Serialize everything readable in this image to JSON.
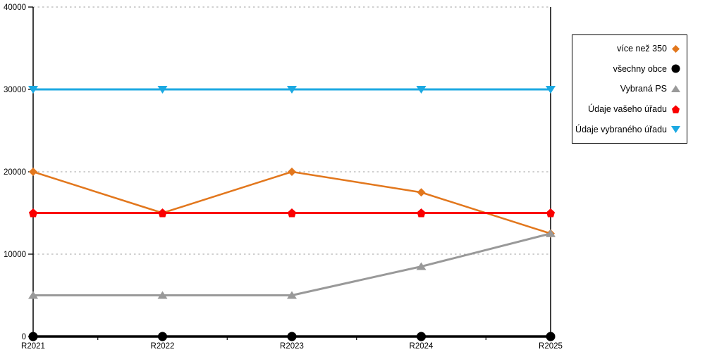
{
  "chart_data": {
    "type": "line",
    "title": "",
    "xlabel": "",
    "ylabel": "",
    "categories": [
      "R2021",
      "R2022",
      "R2023",
      "R2024",
      "R2025"
    ],
    "series": [
      {
        "name": "více než 350",
        "color": "#E2771D",
        "marker": "diamond",
        "line_width": 2.5,
        "values": [
          20000,
          15000,
          20000,
          17500,
          12500
        ]
      },
      {
        "name": "všechny obce",
        "color": "#000000",
        "marker": "circle",
        "line_width": 3.5,
        "values": [
          0,
          0,
          0,
          0,
          0
        ]
      },
      {
        "name": "Vybraná PS",
        "color": "#999999",
        "marker": "triangle-up",
        "line_width": 3,
        "values": [
          5000,
          5000,
          5000,
          8500,
          12500
        ]
      },
      {
        "name": "Údaje vašeho úřadu",
        "color": "#FA0000",
        "marker": "pentagon",
        "line_width": 3,
        "values": [
          15000,
          15000,
          15000,
          15000,
          15000
        ]
      },
      {
        "name": "Údaje vybraného úřadu",
        "color": "#1CA9E2",
        "marker": "triangle-down",
        "line_width": 3,
        "values": [
          30000,
          30000,
          30000,
          30000,
          30000
        ]
      }
    ],
    "ylim": [
      0,
      40000
    ],
    "yticks": [
      0,
      10000,
      20000,
      30000,
      40000
    ],
    "grid": "horizontal-dotted",
    "gridline_color": "#b3b3b3",
    "axis_color": "#000000",
    "legend_position": "top-right-outside"
  }
}
